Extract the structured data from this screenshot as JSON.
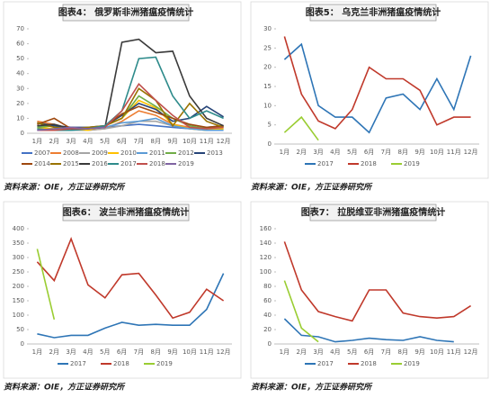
{
  "chart_data": [
    {
      "type": "line",
      "title": "图表4：  俄罗斯非洲猪瘟疫情统计",
      "source": "资料来源：OIE，方正证券研究所",
      "categories": [
        "1月",
        "2月",
        "3月",
        "4月",
        "5月",
        "6月",
        "7月",
        "8月",
        "9月",
        "10月",
        "11月",
        "12月"
      ],
      "ylim": [
        0,
        70
      ],
      "yticks": [
        0,
        10,
        20,
        30,
        40,
        50,
        60,
        70
      ],
      "grid": false,
      "series": [
        {
          "name": "2007",
          "color": "#4472c4",
          "values": [
            5,
            5,
            4,
            3,
            4,
            5,
            6,
            5,
            4,
            3,
            4,
            5
          ]
        },
        {
          "name": "2008",
          "color": "#ed7d31",
          "values": [
            8,
            6,
            3,
            2,
            3,
            8,
            15,
            12,
            6,
            4,
            3,
            5
          ]
        },
        {
          "name": "2009",
          "color": "#a5a5a5",
          "values": [
            3,
            2,
            2,
            2,
            3,
            5,
            8,
            8,
            5,
            3,
            2,
            3
          ]
        },
        {
          "name": "2010",
          "color": "#ffc000",
          "values": [
            4,
            3,
            3,
            2,
            5,
            10,
            22,
            17,
            6,
            3,
            2,
            3
          ]
        },
        {
          "name": "2011",
          "color": "#5b9bd5",
          "values": [
            2,
            2,
            2,
            3,
            4,
            7,
            8,
            10,
            5,
            3,
            2,
            2
          ]
        },
        {
          "name": "2012",
          "color": "#70ad47",
          "values": [
            4,
            5,
            3,
            3,
            5,
            10,
            25,
            18,
            10,
            5,
            3,
            4
          ]
        },
        {
          "name": "2013",
          "color": "#264478",
          "values": [
            7,
            5,
            4,
            4,
            5,
            12,
            20,
            16,
            8,
            10,
            18,
            11
          ]
        },
        {
          "name": "2014",
          "color": "#9e480e",
          "values": [
            6,
            10,
            3,
            3,
            5,
            13,
            18,
            14,
            10,
            6,
            4,
            5
          ]
        },
        {
          "name": "2015",
          "color": "#997300",
          "values": [
            7,
            4,
            3,
            4,
            5,
            10,
            30,
            22,
            5,
            20,
            8,
            4
          ]
        },
        {
          "name": "2016",
          "color": "#3a3a3a",
          "values": [
            5,
            6,
            3,
            3,
            4,
            61,
            63,
            54,
            55,
            25,
            10,
            5
          ]
        },
        {
          "name": "2017",
          "color": "#2e8b8b",
          "values": [
            3,
            2,
            2,
            3,
            5,
            15,
            50,
            51,
            25,
            10,
            15,
            10
          ]
        },
        {
          "name": "2018",
          "color": "#c0504d",
          "values": [
            2,
            2,
            3,
            3,
            4,
            15,
            33,
            22,
            12,
            4,
            3,
            4
          ]
        },
        {
          "name": "2019",
          "color": "#8064a2",
          "values": [
            2,
            3,
            4,
            3,
            4,
            null,
            null,
            null,
            null,
            null,
            null,
            null
          ]
        }
      ]
    },
    {
      "type": "line",
      "title": "图表5：  乌克兰非洲猪瘟疫情统计",
      "source": "资料来源：OIE，方正证券研究所",
      "categories": [
        "1月",
        "2月",
        "3月",
        "4月",
        "5月",
        "6月",
        "7月",
        "8月",
        "9月",
        "10月",
        "11月",
        "12月"
      ],
      "ylim": [
        0,
        30
      ],
      "yticks": [
        0,
        5,
        10,
        15,
        20,
        25,
        30
      ],
      "grid": false,
      "series": [
        {
          "name": "2017",
          "color": "#2e75b6",
          "values": [
            22,
            26,
            10,
            7,
            7,
            3,
            12,
            13,
            9,
            17,
            9,
            23
          ]
        },
        {
          "name": "2018",
          "color": "#c0392b",
          "values": [
            28,
            13,
            6,
            4,
            9,
            20,
            17,
            17,
            14,
            5,
            7,
            7
          ]
        },
        {
          "name": "2019",
          "color": "#9acd32",
          "values": [
            3,
            7,
            1,
            null,
            null,
            null,
            null,
            null,
            null,
            null,
            null,
            null
          ]
        }
      ]
    },
    {
      "type": "line",
      "title": "图表6：  波兰非洲猪瘟疫情统计",
      "source": "资料来源：OIE，方正证券研究所",
      "categories": [
        "1月",
        "2月",
        "3月",
        "4月",
        "5月",
        "6月",
        "7月",
        "8月",
        "9月",
        "10月",
        "11月",
        "12月"
      ],
      "ylim": [
        0,
        400
      ],
      "yticks": [
        0,
        50,
        100,
        150,
        200,
        250,
        300,
        350,
        400
      ],
      "grid": false,
      "series": [
        {
          "name": "2017",
          "color": "#2e75b6",
          "values": [
            35,
            22,
            30,
            30,
            55,
            75,
            65,
            68,
            65,
            65,
            120,
            245
          ]
        },
        {
          "name": "2018",
          "color": "#c0392b",
          "values": [
            285,
            220,
            365,
            205,
            160,
            240,
            245,
            170,
            90,
            110,
            190,
            150
          ]
        },
        {
          "name": "2019",
          "color": "#9acd32",
          "values": [
            330,
            85,
            null,
            null,
            null,
            null,
            null,
            null,
            null,
            null,
            null,
            null
          ]
        }
      ]
    },
    {
      "type": "line",
      "title": "图表7：  拉脱维亚非洲猪瘟疫情统计",
      "source": "资料来源：OIE，方正证券研究所",
      "categories": [
        "1月",
        "2月",
        "3月",
        "4月",
        "5月",
        "6月",
        "7月",
        "8月",
        "9月",
        "10月",
        "11月",
        "12月"
      ],
      "ylim": [
        0,
        160
      ],
      "yticks": [
        0,
        20,
        40,
        60,
        80,
        100,
        120,
        140,
        160
      ],
      "grid": false,
      "series": [
        {
          "name": "2017",
          "color": "#2e75b6",
          "values": [
            35,
            12,
            10,
            3,
            5,
            8,
            6,
            5,
            10,
            5,
            3,
            null
          ]
        },
        {
          "name": "2018",
          "color": "#c0392b",
          "values": [
            142,
            75,
            45,
            38,
            32,
            75,
            75,
            43,
            38,
            36,
            38,
            53
          ]
        },
        {
          "name": "2019",
          "color": "#9acd32",
          "values": [
            88,
            22,
            3,
            null,
            null,
            null,
            null,
            null,
            null,
            null,
            null,
            null
          ]
        }
      ]
    }
  ]
}
